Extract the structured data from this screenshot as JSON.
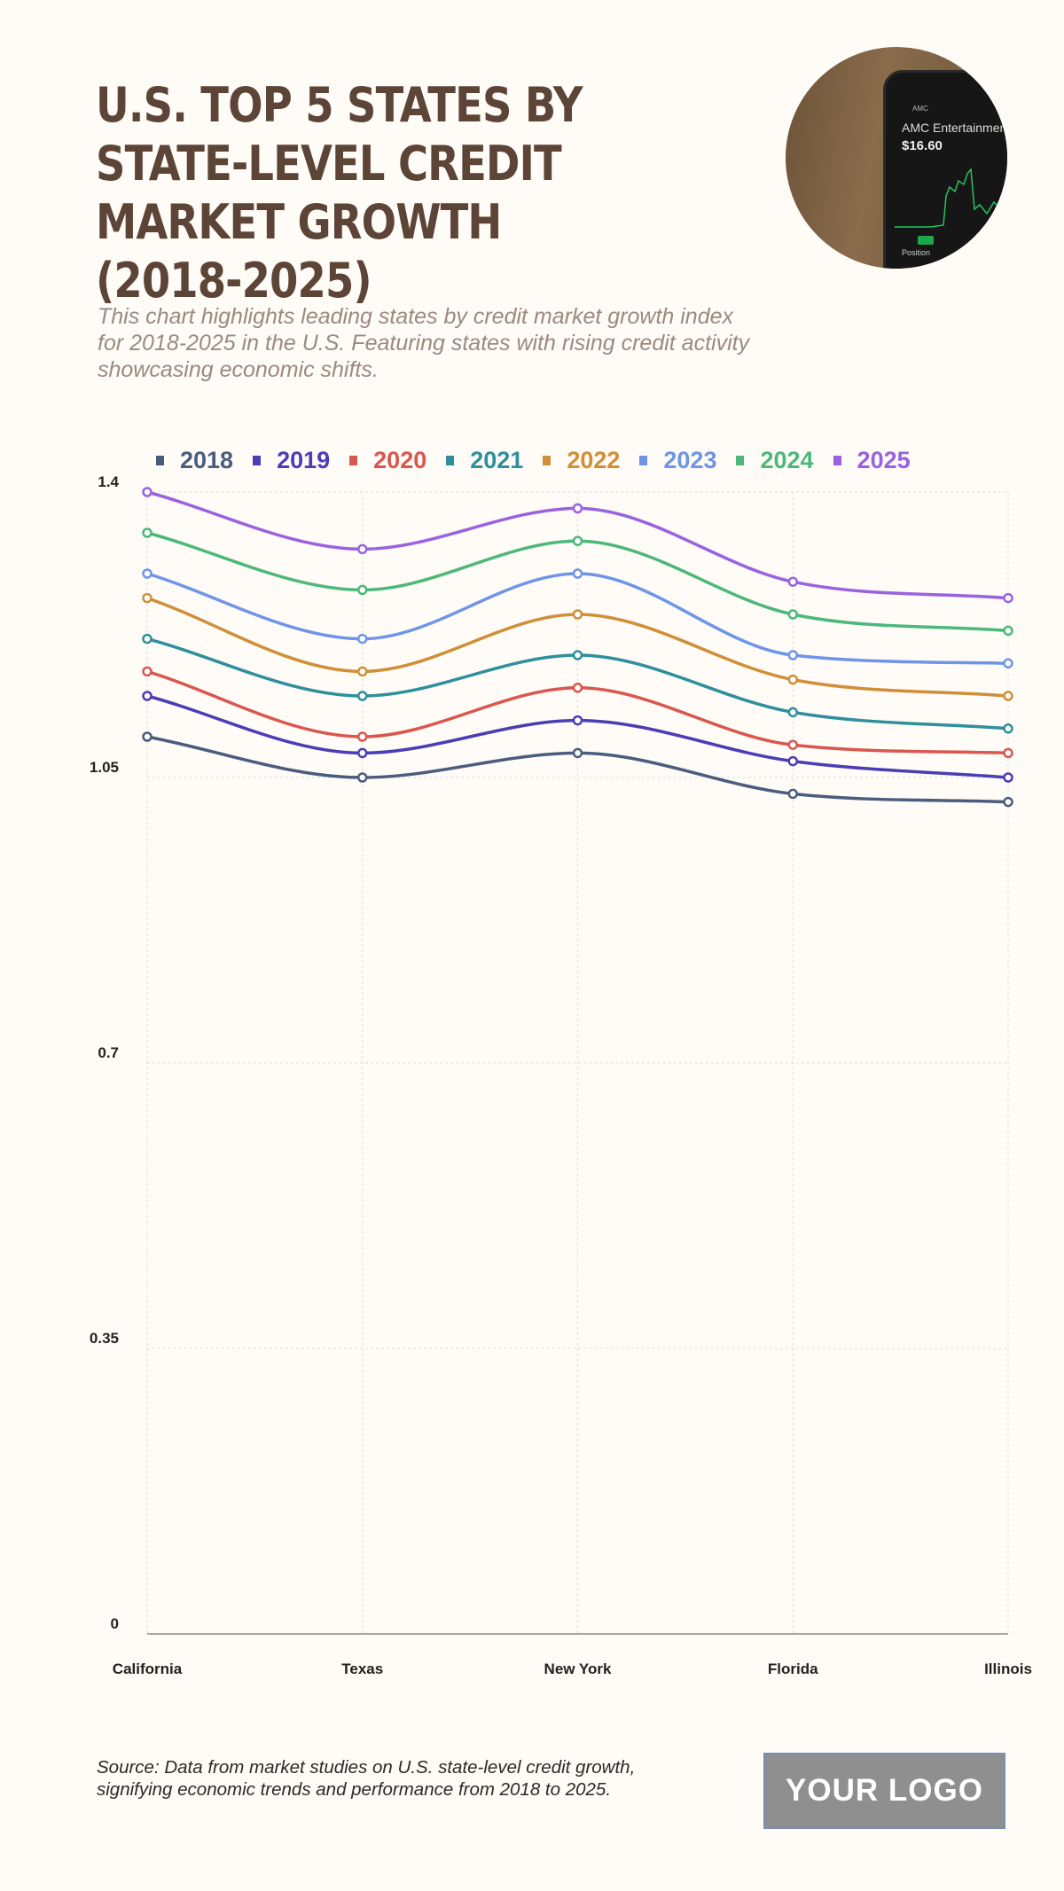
{
  "title": "U.S. Top 5 States by State-Level Credit Market Growth (2018-2025)",
  "subtitle": "This chart highlights leading states by credit market growth index for 2018-2025 in the U.S. Featuring states with rising credit activity showcasing economic shifts.",
  "photo": {
    "app_back": "AMC",
    "stock_name": "AMC Entertainment",
    "price": "$16.60",
    "section": "Position"
  },
  "source": "Source: Data from market studies on U.S. state-level credit growth, signifying economic trends and performance from 2018 to 2025.",
  "logo_text": "YOUR LOGO",
  "chart_data": {
    "type": "line",
    "title": "",
    "xlabel": "",
    "ylabel": "",
    "categories": [
      "California",
      "Texas",
      "New York",
      "Florida",
      "Illinois"
    ],
    "ylim": [
      0,
      1.4
    ],
    "yticks": [
      "0",
      "0.35",
      "0.7",
      "1.05",
      "1.4"
    ],
    "grid": true,
    "legend": "top",
    "curve": "smooth",
    "series": [
      {
        "name": "2018",
        "color": "#4a5d7e",
        "values": [
          1.1,
          1.05,
          1.08,
          1.03,
          1.02
        ]
      },
      {
        "name": "2019",
        "color": "#4b3db5",
        "values": [
          1.15,
          1.08,
          1.12,
          1.07,
          1.05
        ]
      },
      {
        "name": "2020",
        "color": "#d9574f",
        "values": [
          1.18,
          1.1,
          1.16,
          1.09,
          1.08
        ]
      },
      {
        "name": "2021",
        "color": "#2f8f9d",
        "values": [
          1.22,
          1.15,
          1.2,
          1.13,
          1.11
        ]
      },
      {
        "name": "2022",
        "color": "#d08f37",
        "values": [
          1.27,
          1.18,
          1.25,
          1.17,
          1.15
        ]
      },
      {
        "name": "2023",
        "color": "#6f95e8",
        "values": [
          1.3,
          1.22,
          1.3,
          1.2,
          1.19
        ]
      },
      {
        "name": "2024",
        "color": "#4cb87a",
        "values": [
          1.35,
          1.28,
          1.34,
          1.25,
          1.23
        ]
      },
      {
        "name": "2025",
        "color": "#9a62e0",
        "values": [
          1.4,
          1.33,
          1.38,
          1.29,
          1.27
        ]
      }
    ]
  }
}
